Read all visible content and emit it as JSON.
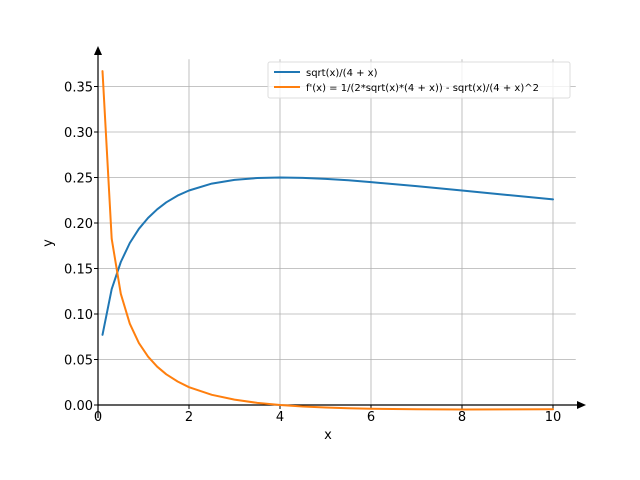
{
  "chart_data": {
    "type": "line",
    "xlabel": "x",
    "ylabel": "y",
    "xlim": [
      0,
      10.5
    ],
    "ylim": [
      0,
      0.38
    ],
    "x_ticks": [
      0,
      2,
      4,
      6,
      8,
      10
    ],
    "y_ticks": [
      0.0,
      0.05,
      0.1,
      0.15,
      0.2,
      0.25,
      0.3,
      0.35
    ],
    "x_tick_labels": [
      "0",
      "2",
      "4",
      "6",
      "8",
      "10"
    ],
    "y_tick_labels": [
      "0.00",
      "0.05",
      "0.10",
      "0.15",
      "0.20",
      "0.25",
      "0.30",
      "0.35"
    ],
    "grid": true,
    "legend_position": "top-right",
    "series": [
      {
        "name": "sqrt(x)/(4 + x)",
        "color": "#1f77b4",
        "x": [
          0.1,
          0.3,
          0.5,
          0.7,
          0.9,
          1.1,
          1.3,
          1.5,
          1.75,
          2,
          2.5,
          3,
          3.5,
          4,
          4.5,
          5,
          5.5,
          6,
          7,
          8,
          9,
          10
        ],
        "y": [
          0.0771,
          0.1274,
          0.1571,
          0.178,
          0.1936,
          0.2056,
          0.2151,
          0.2227,
          0.2301,
          0.2357,
          0.2433,
          0.2474,
          0.2494,
          0.25,
          0.2496,
          0.2485,
          0.2469,
          0.2449,
          0.2405,
          0.2357,
          0.2308,
          0.2259
        ]
      },
      {
        "name": "f'(x) = 1/(2*sqrt(x)*(4 + x)) - sqrt(x)/(4 + x)^2",
        "color": "#ff7f0e",
        "x": [
          0.1,
          0.3,
          0.5,
          0.7,
          0.9,
          1.1,
          1.3,
          1.5,
          1.75,
          2,
          2.5,
          3,
          3.5,
          4,
          4.5,
          5,
          5.5,
          6,
          7,
          8,
          9,
          10
        ],
        "y": [
          0.3669,
          0.1826,
          0.1222,
          0.0893,
          0.068,
          0.0531,
          0.0421,
          0.0337,
          0.0258,
          0.0196,
          0.0112,
          0.0059,
          0.0023,
          0.0,
          -0.0017,
          -0.0028,
          -0.0036,
          -0.0041,
          -0.0047,
          -0.0049,
          -0.0048,
          -0.0047
        ]
      }
    ]
  }
}
